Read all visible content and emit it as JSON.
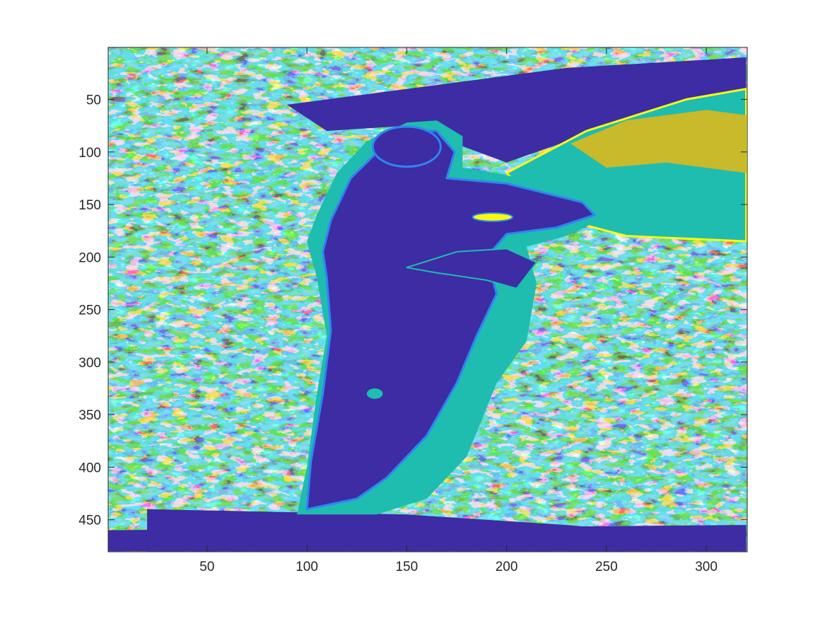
{
  "chart_data": {
    "type": "heatmap",
    "title": "",
    "xlabel": "",
    "ylabel": "",
    "xlim": [
      0.5,
      320.5
    ],
    "ylim": [
      0.5,
      480.5
    ],
    "y_reversed": true,
    "x_ticks": [
      50,
      100,
      150,
      200,
      250,
      300
    ],
    "y_ticks": [
      50,
      100,
      150,
      200,
      250,
      300,
      350,
      400,
      450
    ],
    "colormap": "parula",
    "levels": 5,
    "level_colors": [
      "#3D2CA3",
      "#2F84F2",
      "#1FBCB0",
      "#C8BA2A",
      "#F9FA14"
    ],
    "grid": false,
    "image_width": 320,
    "image_height": 480
  }
}
